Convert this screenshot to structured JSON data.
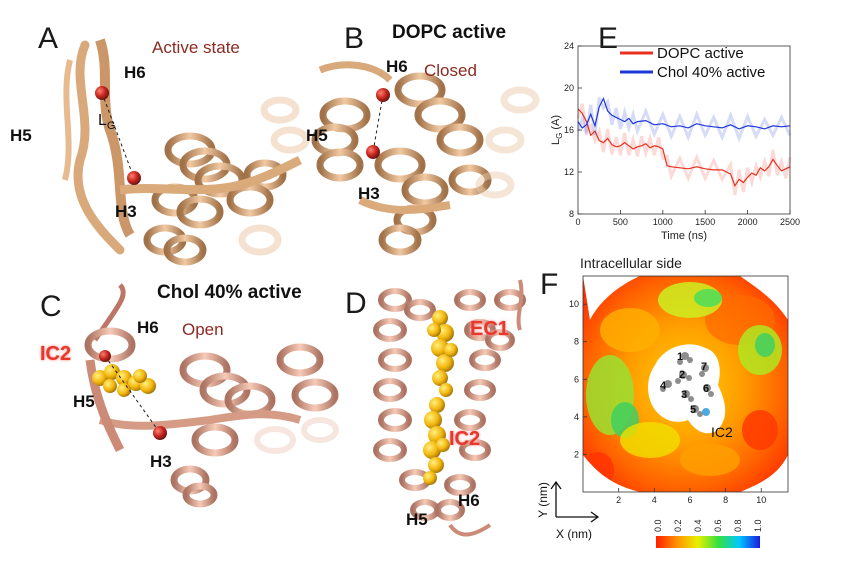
{
  "panels": {
    "A": {
      "letter": "A",
      "state": "Active state",
      "labels": {
        "h6": "H6",
        "h5": "H5",
        "h3": "H3",
        "lg": "L",
        "lg_sub": "G"
      }
    },
    "B": {
      "letter": "B",
      "title": "DOPC active",
      "state": "Closed",
      "labels": {
        "h6": "H6",
        "h5": "H5",
        "h3": "H3"
      }
    },
    "C": {
      "letter": "C",
      "title": "Chol 40% active",
      "state": "Open",
      "labels": {
        "h6": "H6",
        "h5": "H5",
        "h3": "H3",
        "ic2": "IC2"
      }
    },
    "D": {
      "letter": "D",
      "labels": {
        "ec1": "EC1",
        "ic2": "IC2",
        "h5": "H5",
        "h6": "H6"
      }
    },
    "E": {
      "letter": "E"
    },
    "F": {
      "letter": "F",
      "title": "Intracellular side",
      "site_labels": [
        "1",
        "2",
        "3",
        "4",
        "5",
        "6",
        "7"
      ],
      "ic2": "IC2",
      "axis_y": "Y (nm)",
      "axis_x": "X (nm)"
    }
  },
  "chart_data": [
    {
      "type": "line",
      "xlabel": "Time (ns)",
      "ylabel": "L",
      "ylabel_sub": "G",
      "ylabel_unit": " (A)",
      "xlim": [
        0,
        2500
      ],
      "ylim": [
        8,
        24
      ],
      "xticks": [
        0,
        500,
        1000,
        1500,
        2000,
        2500
      ],
      "yticks": [
        8,
        12,
        16,
        20,
        24
      ],
      "legend_position": "top-right",
      "series": [
        {
          "name": "DOPC active",
          "color": "#e8301f",
          "x": [
            0,
            50,
            100,
            150,
            200,
            250,
            300,
            350,
            400,
            450,
            500,
            550,
            600,
            650,
            700,
            750,
            800,
            850,
            900,
            950,
            1000,
            1050,
            1100,
            1200,
            1300,
            1400,
            1500,
            1600,
            1700,
            1800,
            1850,
            1900,
            1950,
            2000,
            2050,
            2100,
            2150,
            2200,
            2250,
            2300,
            2350,
            2400,
            2450,
            2500
          ],
          "values": [
            18,
            17.6,
            16.8,
            15.5,
            15.9,
            15.0,
            14.8,
            15.2,
            14.6,
            14.4,
            14.5,
            14.8,
            14.5,
            14.2,
            14.4,
            14.5,
            14.7,
            14.3,
            14.5,
            14.4,
            14.2,
            12.6,
            12.5,
            12.4,
            12.3,
            12.5,
            12.3,
            12.2,
            12.2,
            11.8,
            10.7,
            11.3,
            11.0,
            11.5,
            11.9,
            11.7,
            12.4,
            12.1,
            12.5,
            13.2,
            12.6,
            12.1,
            12.3,
            12.5
          ]
        },
        {
          "name": "Chol 40% active",
          "color": "#1c36d8",
          "x": [
            0,
            50,
            100,
            150,
            200,
            250,
            300,
            350,
            400,
            450,
            500,
            550,
            600,
            650,
            700,
            800,
            900,
            1000,
            1100,
            1200,
            1300,
            1400,
            1500,
            1600,
            1700,
            1800,
            1900,
            2000,
            2100,
            2200,
            2300,
            2400,
            2500
          ],
          "values": [
            16.8,
            16.2,
            16.5,
            17.5,
            16.4,
            18.2,
            19.0,
            17.8,
            17.4,
            17.2,
            17.0,
            16.8,
            17.1,
            16.6,
            16.8,
            16.9,
            16.5,
            16.6,
            16.3,
            16.4,
            16.2,
            16.6,
            16.4,
            16.3,
            16.2,
            16.5,
            16.1,
            16.4,
            16.3,
            16.1,
            16.4,
            16.3,
            16.4
          ]
        }
      ]
    },
    {
      "type": "heatmap",
      "title": "Intracellular side",
      "xlabel": "X (nm)",
      "ylabel": "Y (nm)",
      "xlim": [
        0,
        11.5
      ],
      "ylim": [
        0,
        11.5
      ],
      "xticks": [
        2,
        4,
        6,
        8,
        10
      ],
      "yticks": [
        2,
        4,
        6,
        8,
        10
      ],
      "colorbar_ticks": [
        "0.0",
        "0.2",
        "0.4",
        "0.6",
        "0.8",
        "1.0"
      ],
      "colorbar_range": [
        0.0,
        1.0
      ]
    }
  ],
  "colors": {
    "helix": "#dca97c",
    "helix_dark": "#b97d4d",
    "helix_pink": "#e9b49e",
    "sphere": "#c41a12",
    "gold": "#f6b800",
    "title_red": "#8b2a22"
  }
}
